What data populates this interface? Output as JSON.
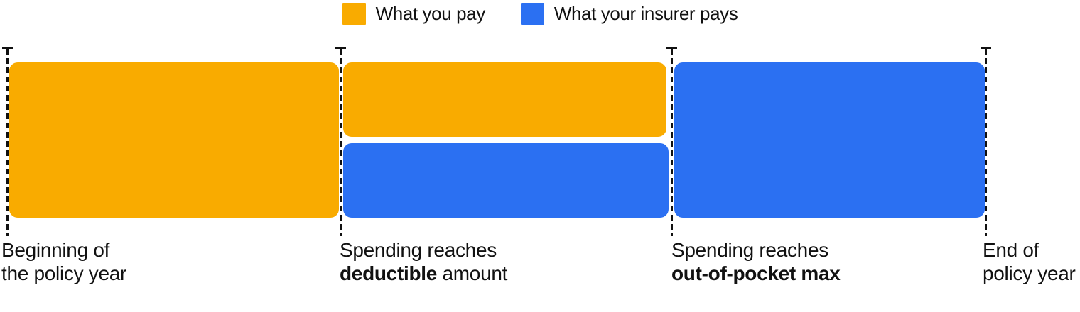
{
  "colors": {
    "you_pay": "#F9AB00",
    "insurer_pays": "#2B70F2",
    "line": "#111111",
    "text": "#111111"
  },
  "legend": {
    "items": [
      {
        "label": "What you pay",
        "color": "#F9AB00"
      },
      {
        "label": "What your insurer pays",
        "color": "#2B70F2"
      }
    ]
  },
  "markers": [
    {
      "line1": "Beginning of",
      "line2_bold": "",
      "line2_plain": "the policy year"
    },
    {
      "line1": "Spending reaches",
      "line2_bold": "deductible",
      "line2_plain": " amount"
    },
    {
      "line1": "Spending reaches",
      "line2_bold": "out-of-pocket max",
      "line2_plain": ""
    },
    {
      "line1": "End of",
      "line2_bold": "",
      "line2_plain": "policy year"
    }
  ],
  "phases": [
    {
      "from": "Beginning of the policy year",
      "to": "Spending reaches deductible amount",
      "who_pays": "you"
    },
    {
      "from": "Spending reaches deductible amount",
      "to": "Spending reaches out-of-pocket max",
      "who_pays": "you + insurer"
    },
    {
      "from": "Spending reaches out-of-pocket max",
      "to": "End of policy year",
      "who_pays": "insurer"
    }
  ]
}
